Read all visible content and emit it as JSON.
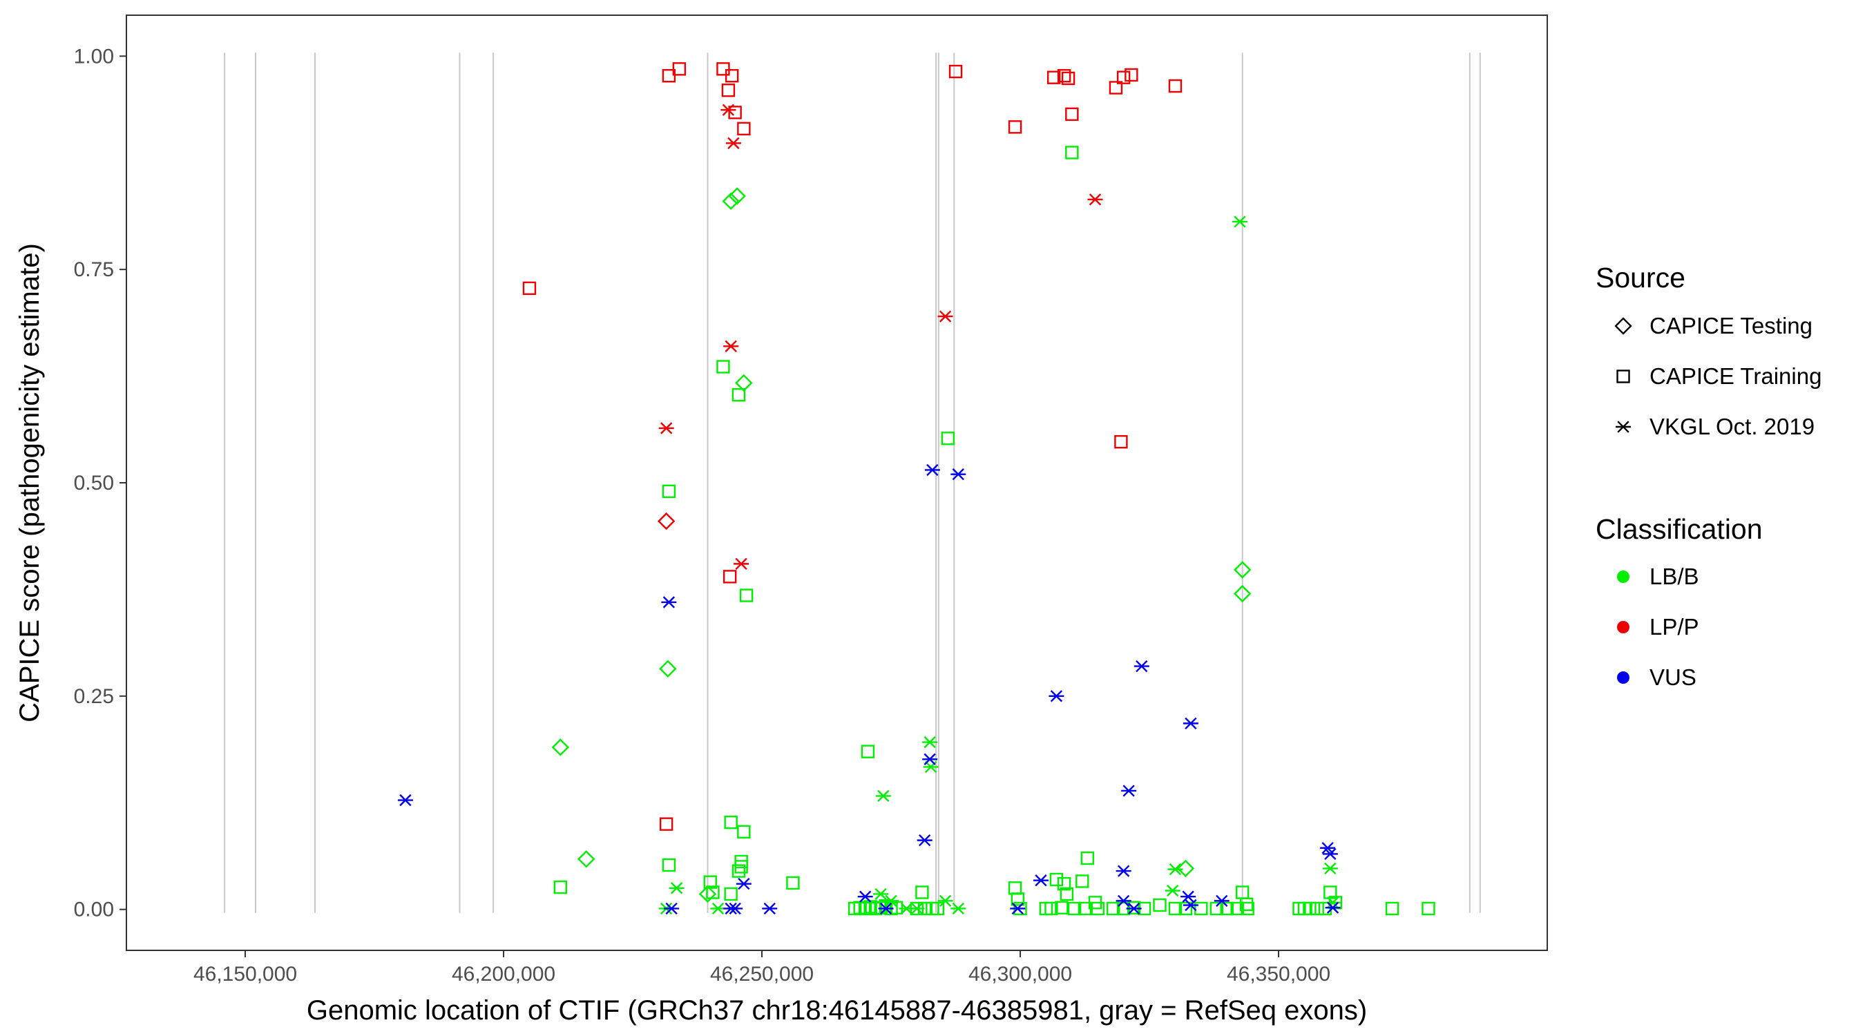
{
  "chart_data": {
    "type": "scatter",
    "title": "",
    "xlabel": "Genomic location of CTIF (GRCh37 chr18:46145887-46385981, gray = RefSeq exons)",
    "ylabel": "CAPICE score (pathogenicity estimate)",
    "xlim": [
      46127000,
      46402000
    ],
    "ylim": [
      -0.048,
      1.048
    ],
    "x_ticks": [
      46150000,
      46200000,
      46250000,
      46300000,
      46350000
    ],
    "x_tick_labels": [
      "46,150,000",
      "46,200,000",
      "46,250,000",
      "46,300,000",
      "46,350,000"
    ],
    "y_ticks": [
      0,
      0.25,
      0.5,
      0.75,
      1.0
    ],
    "y_tick_labels": [
      "0.00",
      "0.25",
      "0.50",
      "0.75",
      "1.00"
    ],
    "grid": false,
    "exons": [
      46146000,
      46152000,
      46163500,
      46191500,
      46198000,
      46239500,
      46283700,
      46284200,
      46287200,
      46343000,
      46387000,
      46389000
    ],
    "legend_placement": "right",
    "legend": {
      "source_title": "Source",
      "source_entries": [
        {
          "shape": "diamond",
          "label": "CAPICE Testing"
        },
        {
          "shape": "square",
          "label": "CAPICE Training"
        },
        {
          "shape": "asterisk",
          "label": "VKGL Oct. 2019"
        }
      ],
      "class_title": "Classification",
      "class_entries": [
        {
          "key": "LB/B",
          "label": "LB/B",
          "color": "#00ee00"
        },
        {
          "key": "LP/P",
          "label": "LP/P",
          "color": "#ee0000"
        },
        {
          "key": "VUS",
          "label": "VUS",
          "color": "#0000ee"
        }
      ]
    },
    "series": [
      {
        "source": "CAPICE Training",
        "classification": "LP/P",
        "points": [
          [
            46232000,
            0.977
          ],
          [
            46234000,
            0.985
          ],
          [
            46242500,
            0.985
          ],
          [
            46243500,
            0.96
          ],
          [
            46244200,
            0.977
          ],
          [
            46244800,
            0.934
          ],
          [
            46246500,
            0.915
          ],
          [
            46243800,
            0.39
          ],
          [
            46205000,
            0.728
          ],
          [
            46231500,
            0.1
          ],
          [
            46287500,
            0.982
          ],
          [
            46299000,
            0.917
          ],
          [
            46306500,
            0.975
          ],
          [
            46308500,
            0.977
          ],
          [
            46309300,
            0.974
          ],
          [
            46310000,
            0.932
          ],
          [
            46318500,
            0.963
          ],
          [
            46320000,
            0.975
          ],
          [
            46321500,
            0.978
          ],
          [
            46330000,
            0.965
          ],
          [
            46319500,
            0.548
          ]
        ]
      },
      {
        "source": "CAPICE Training",
        "classification": "LB/B",
        "points": [
          [
            46242500,
            0.636
          ],
          [
            46245500,
            0.603
          ],
          [
            46232000,
            0.49
          ],
          [
            46247000,
            0.368
          ],
          [
            46286000,
            0.552
          ],
          [
            46310000,
            0.887
          ],
          [
            46270500,
            0.185
          ],
          [
            46244000,
            0.102
          ],
          [
            46246500,
            0.091
          ],
          [
            46246000,
            0.056
          ],
          [
            46246000,
            0.05
          ],
          [
            46245500,
            0.045
          ],
          [
            46232000,
            0.052
          ],
          [
            46256000,
            0.031
          ],
          [
            46240000,
            0.032
          ],
          [
            46240500,
            0.02
          ],
          [
            46244000,
            0.018
          ],
          [
            46211000,
            0.026
          ],
          [
            46281000,
            0.02
          ],
          [
            46299000,
            0.025
          ],
          [
            46299500,
            0.012
          ],
          [
            46313000,
            0.06
          ],
          [
            46307000,
            0.035
          ],
          [
            46308500,
            0.03
          ],
          [
            46309000,
            0.018
          ],
          [
            46312000,
            0.033
          ],
          [
            46314500,
            0.008
          ],
          [
            46343000,
            0.02
          ],
          [
            46343800,
            0.006
          ],
          [
            46360000,
            0.02
          ],
          [
            46361000,
            0.008
          ],
          [
            46372000,
            0.001
          ],
          [
            46379000,
            0.001
          ],
          [
            46268000,
            0.001
          ],
          [
            46269000,
            0.002
          ],
          [
            46270000,
            0.001
          ],
          [
            46271000,
            0.003
          ],
          [
            46272000,
            0.001
          ],
          [
            46273000,
            0.002
          ],
          [
            46274000,
            0.004
          ],
          [
            46275000,
            0.001
          ],
          [
            46276000,
            0.002
          ],
          [
            46280000,
            0.001
          ],
          [
            46281500,
            0.001
          ],
          [
            46283000,
            0.001
          ],
          [
            46284000,
            0.001
          ],
          [
            46300000,
            0.001
          ],
          [
            46305000,
            0.001
          ],
          [
            46306000,
            0.001
          ],
          [
            46308000,
            0.002
          ],
          [
            46310500,
            0.001
          ],
          [
            46312500,
            0.001
          ],
          [
            46315000,
            0.001
          ],
          [
            46318000,
            0.001
          ],
          [
            46320000,
            0.001
          ],
          [
            46322000,
            0.002
          ],
          [
            46324000,
            0.001
          ],
          [
            46327000,
            0.005
          ],
          [
            46330000,
            0.001
          ],
          [
            46332000,
            0.001
          ],
          [
            46335000,
            0.001
          ],
          [
            46338000,
            0.001
          ],
          [
            46340000,
            0.001
          ],
          [
            46342000,
            0.001
          ],
          [
            46344000,
            0.001
          ],
          [
            46354000,
            0.001
          ],
          [
            46355000,
            0.001
          ],
          [
            46356000,
            0.001
          ],
          [
            46357500,
            0.001
          ],
          [
            46359000,
            0.001
          ]
        ]
      },
      {
        "source": "CAPICE Testing",
        "classification": "LP/P",
        "points": [
          [
            46231500,
            0.455
          ]
        ]
      },
      {
        "source": "CAPICE Testing",
        "classification": "LB/B",
        "points": [
          [
            46244000,
            0.83
          ],
          [
            46245200,
            0.836
          ],
          [
            46246500,
            0.617
          ],
          [
            46231800,
            0.282
          ],
          [
            46211000,
            0.19
          ],
          [
            46216000,
            0.059
          ],
          [
            46239500,
            0.018
          ],
          [
            46332000,
            0.048
          ],
          [
            46343000,
            0.398
          ],
          [
            46343000,
            0.37
          ]
        ]
      },
      {
        "source": "VKGL Oct. 2019",
        "classification": "LP/P",
        "points": [
          [
            46243500,
            0.937
          ],
          [
            46244500,
            0.898
          ],
          [
            46244000,
            0.66
          ],
          [
            46231500,
            0.564
          ],
          [
            46246000,
            0.405
          ],
          [
            46285500,
            0.695
          ],
          [
            46314500,
            0.832
          ]
        ]
      },
      {
        "source": "VKGL Oct. 2019",
        "classification": "LB/B",
        "points": [
          [
            46282500,
            0.196
          ],
          [
            46282700,
            0.167
          ],
          [
            46273500,
            0.133
          ],
          [
            46233500,
            0.025
          ],
          [
            46231500,
            0.001
          ],
          [
            46241500,
            0.001
          ],
          [
            46342500,
            0.806
          ],
          [
            46330000,
            0.047
          ],
          [
            46329500,
            0.022
          ],
          [
            46273000,
            0.018
          ],
          [
            46275000,
            0.01
          ],
          [
            46285500,
            0.01
          ],
          [
            46288000,
            0.001
          ],
          [
            46278000,
            0.001
          ],
          [
            46280000,
            0.001
          ],
          [
            46360000,
            0.048
          ],
          [
            46360500,
            0.008
          ]
        ]
      },
      {
        "source": "VKGL Oct. 2019",
        "classification": "VUS",
        "points": [
          [
            46181000,
            0.128
          ],
          [
            46232000,
            0.36
          ],
          [
            46232500,
            0.001
          ],
          [
            46244000,
            0.001
          ],
          [
            46244800,
            0.001
          ],
          [
            46246500,
            0.03
          ],
          [
            46251500,
            0.001
          ],
          [
            46283000,
            0.515
          ],
          [
            46288000,
            0.51
          ],
          [
            46282500,
            0.176
          ],
          [
            46281500,
            0.081
          ],
          [
            46270000,
            0.015
          ],
          [
            46274000,
            0.001
          ],
          [
            46299500,
            0.001
          ],
          [
            46304000,
            0.034
          ],
          [
            46307000,
            0.25
          ],
          [
            46323500,
            0.285
          ],
          [
            46333000,
            0.218
          ],
          [
            46321000,
            0.139
          ],
          [
            46320000,
            0.045
          ],
          [
            46320000,
            0.01
          ],
          [
            46322000,
            0.001
          ],
          [
            46332500,
            0.015
          ],
          [
            46333000,
            0.005
          ],
          [
            46339000,
            0.01
          ],
          [
            46359500,
            0.072
          ],
          [
            46360000,
            0.065
          ],
          [
            46360500,
            0.002
          ]
        ]
      }
    ]
  }
}
